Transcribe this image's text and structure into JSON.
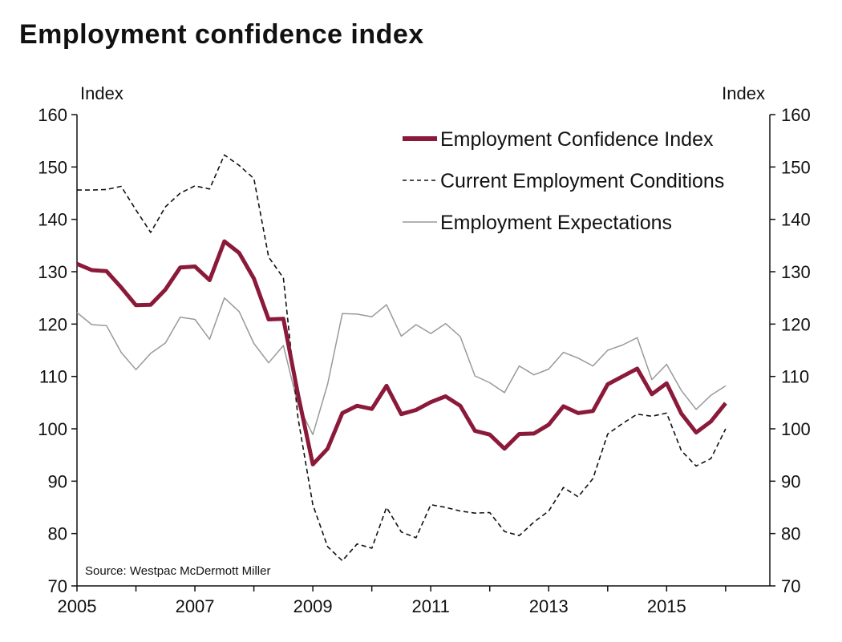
{
  "chart_data": {
    "type": "line",
    "title": "Employment confidence index",
    "ylabel_left": "Index",
    "ylabel_right": "Index",
    "source": "Source: Westpac McDermott Miller",
    "ylim": [
      70,
      160
    ],
    "xlim": [
      2005,
      2016.75
    ],
    "yticks": [
      70,
      80,
      90,
      100,
      110,
      120,
      130,
      140,
      150,
      160
    ],
    "xticks": [
      2005,
      2007,
      2009,
      2011,
      2013,
      2015
    ],
    "legend_position": "top-right",
    "series": [
      {
        "name": "Employment Confidence Index",
        "color": "#8b1a3a",
        "style": "solid-thick",
        "points": [
          [
            2005.0,
            131.5
          ],
          [
            2005.25,
            130.3
          ],
          [
            2005.5,
            130.1
          ],
          [
            2005.75,
            127.0
          ],
          [
            2006.0,
            123.6
          ],
          [
            2006.25,
            123.7
          ],
          [
            2006.5,
            126.6
          ],
          [
            2006.75,
            130.8
          ],
          [
            2007.0,
            131.0
          ],
          [
            2007.25,
            128.4
          ],
          [
            2007.5,
            135.8
          ],
          [
            2007.75,
            133.6
          ],
          [
            2008.0,
            128.7
          ],
          [
            2008.25,
            120.9
          ],
          [
            2008.5,
            121.0
          ],
          [
            2008.75,
            106.5
          ],
          [
            2009.0,
            93.2
          ],
          [
            2009.25,
            96.2
          ],
          [
            2009.5,
            103.0
          ],
          [
            2009.75,
            104.4
          ],
          [
            2010.0,
            103.8
          ],
          [
            2010.25,
            108.2
          ],
          [
            2010.5,
            102.8
          ],
          [
            2010.75,
            103.6
          ],
          [
            2011.0,
            105.1
          ],
          [
            2011.25,
            106.2
          ],
          [
            2011.5,
            104.4
          ],
          [
            2011.75,
            99.6
          ],
          [
            2012.0,
            98.9
          ],
          [
            2012.25,
            96.2
          ],
          [
            2012.5,
            99.0
          ],
          [
            2012.75,
            99.1
          ],
          [
            2013.0,
            100.8
          ],
          [
            2013.25,
            104.3
          ],
          [
            2013.5,
            103.0
          ],
          [
            2013.75,
            103.4
          ],
          [
            2014.0,
            108.5
          ],
          [
            2014.25,
            110.0
          ],
          [
            2014.5,
            111.5
          ],
          [
            2014.75,
            106.6
          ],
          [
            2015.0,
            108.7
          ],
          [
            2015.25,
            102.9
          ],
          [
            2015.5,
            99.3
          ],
          [
            2015.75,
            101.4
          ],
          [
            2016.0,
            104.9
          ]
        ]
      },
      {
        "name": "Current Employment Conditions",
        "color": "#111111",
        "style": "dashed",
        "points": [
          [
            2005.0,
            145.6
          ],
          [
            2005.25,
            145.6
          ],
          [
            2005.5,
            145.7
          ],
          [
            2005.75,
            146.3
          ],
          [
            2006.0,
            141.8
          ],
          [
            2006.25,
            137.5
          ],
          [
            2006.5,
            142.4
          ],
          [
            2006.75,
            145.0
          ],
          [
            2007.0,
            146.4
          ],
          [
            2007.25,
            145.8
          ],
          [
            2007.5,
            152.3
          ],
          [
            2007.75,
            150.3
          ],
          [
            2008.0,
            147.8
          ],
          [
            2008.25,
            132.8
          ],
          [
            2008.5,
            128.8
          ],
          [
            2008.75,
            102.0
          ],
          [
            2009.0,
            85.5
          ],
          [
            2009.25,
            77.5
          ],
          [
            2009.5,
            74.8
          ],
          [
            2009.75,
            78.0
          ],
          [
            2010.0,
            77.2
          ],
          [
            2010.25,
            85.0
          ],
          [
            2010.5,
            80.3
          ],
          [
            2010.75,
            79.2
          ],
          [
            2011.0,
            85.5
          ],
          [
            2011.25,
            85.0
          ],
          [
            2011.5,
            84.3
          ],
          [
            2011.75,
            83.9
          ],
          [
            2012.0,
            84.0
          ],
          [
            2012.25,
            80.4
          ],
          [
            2012.5,
            79.6
          ],
          [
            2012.75,
            82.2
          ],
          [
            2013.0,
            84.3
          ],
          [
            2013.25,
            88.8
          ],
          [
            2013.5,
            87.0
          ],
          [
            2013.75,
            90.5
          ],
          [
            2014.0,
            99.0
          ],
          [
            2014.25,
            101.0
          ],
          [
            2014.5,
            102.8
          ],
          [
            2014.75,
            102.4
          ],
          [
            2015.0,
            103.0
          ],
          [
            2015.25,
            95.8
          ],
          [
            2015.5,
            92.9
          ],
          [
            2015.75,
            94.3
          ],
          [
            2016.0,
            100.0
          ]
        ]
      },
      {
        "name": "Employment Expectations",
        "color": "#999999",
        "style": "solid-thin",
        "points": [
          [
            2005.0,
            122.2
          ],
          [
            2005.25,
            119.9
          ],
          [
            2005.5,
            119.7
          ],
          [
            2005.75,
            114.6
          ],
          [
            2006.0,
            111.3
          ],
          [
            2006.25,
            114.4
          ],
          [
            2006.5,
            116.4
          ],
          [
            2006.75,
            121.3
          ],
          [
            2007.0,
            120.9
          ],
          [
            2007.25,
            117.1
          ],
          [
            2007.5,
            125.0
          ],
          [
            2007.75,
            122.4
          ],
          [
            2008.0,
            116.3
          ],
          [
            2008.25,
            112.6
          ],
          [
            2008.5,
            115.9
          ],
          [
            2008.75,
            104.5
          ],
          [
            2009.0,
            98.9
          ],
          [
            2009.25,
            108.5
          ],
          [
            2009.5,
            122.0
          ],
          [
            2009.75,
            121.9
          ],
          [
            2010.0,
            121.4
          ],
          [
            2010.25,
            123.7
          ],
          [
            2010.5,
            117.7
          ],
          [
            2010.75,
            119.9
          ],
          [
            2011.0,
            118.2
          ],
          [
            2011.25,
            120.1
          ],
          [
            2011.5,
            117.6
          ],
          [
            2011.75,
            110.1
          ],
          [
            2012.0,
            108.8
          ],
          [
            2012.25,
            106.9
          ],
          [
            2012.5,
            112.0
          ],
          [
            2012.75,
            110.3
          ],
          [
            2013.0,
            111.4
          ],
          [
            2013.25,
            114.6
          ],
          [
            2013.5,
            113.5
          ],
          [
            2013.75,
            112.0
          ],
          [
            2014.0,
            115.0
          ],
          [
            2014.25,
            116.0
          ],
          [
            2014.5,
            117.4
          ],
          [
            2014.75,
            109.4
          ],
          [
            2015.0,
            112.3
          ],
          [
            2015.25,
            107.3
          ],
          [
            2015.5,
            103.7
          ],
          [
            2015.75,
            106.4
          ],
          [
            2016.0,
            108.2
          ]
        ]
      }
    ]
  }
}
